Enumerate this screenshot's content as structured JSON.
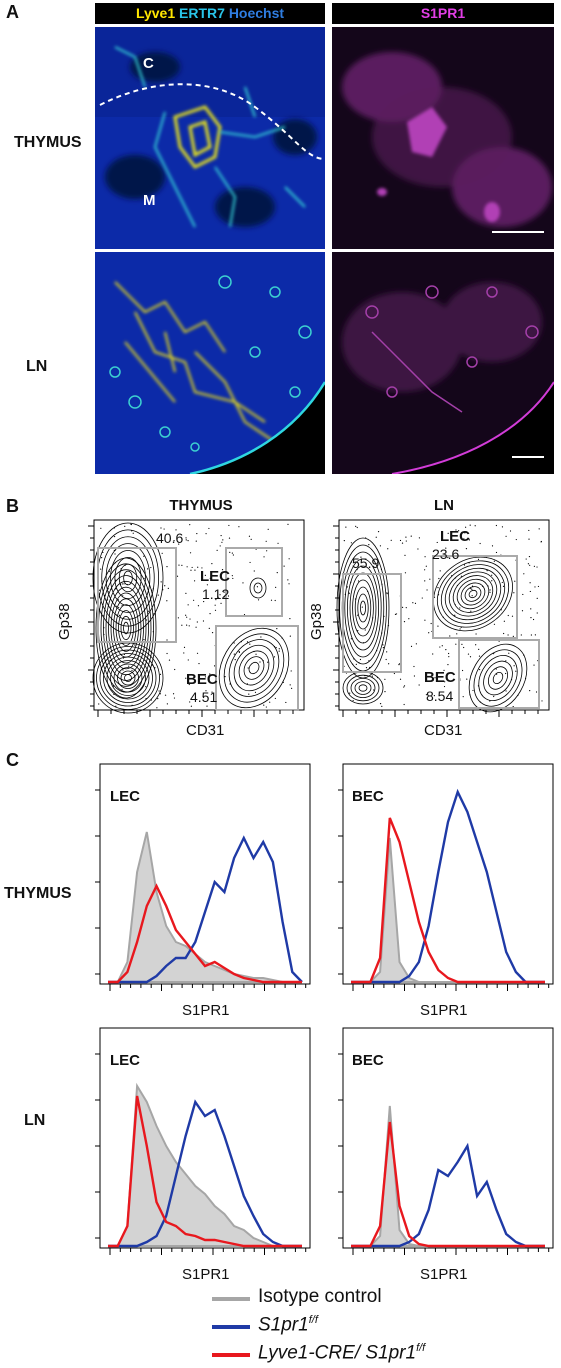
{
  "panelA": {
    "letter": "A",
    "header_left": {
      "parts": [
        {
          "text": "Lyve1",
          "color": "#ffe600"
        },
        {
          "text": "ERTR7",
          "color": "#29c4e8"
        },
        {
          "text": "Hoechst",
          "color": "#2f7de0"
        }
      ]
    },
    "header_right": {
      "text": "S1PR1",
      "color": "#e23ee6"
    },
    "rows": [
      "THYMUS",
      "LN"
    ],
    "thymus_labels": {
      "cortex": "C",
      "medulla": "M"
    }
  },
  "panelB": {
    "letter": "B",
    "thymus": {
      "title": "THYMUS",
      "xlabel": "CD31",
      "ylabel": "Gp38",
      "gates": [
        {
          "name": "",
          "value": "40.6"
        },
        {
          "name": "LEC",
          "value": "1.12"
        },
        {
          "name": "BEC",
          "value": "4.51"
        }
      ]
    },
    "ln": {
      "title": "LN",
      "xlabel": "CD31",
      "ylabel": "Gp38",
      "gates": [
        {
          "name": "",
          "value": "55.9"
        },
        {
          "name": "LEC",
          "value": "23.6"
        },
        {
          "name": "BEC",
          "value": "8.54"
        }
      ]
    }
  },
  "panelC": {
    "letter": "C",
    "rows": [
      "THYMUS",
      "LN"
    ],
    "xlabel": "S1PR1",
    "plots": [
      {
        "row": "THYMUS",
        "cell": "LEC"
      },
      {
        "row": "THYMUS",
        "cell": "BEC"
      },
      {
        "row": "LN",
        "cell": "LEC"
      },
      {
        "row": "LN",
        "cell": "BEC"
      }
    ],
    "legend": [
      {
        "label": "Isotype control",
        "color": "#a6a6a6"
      },
      {
        "label": "S1pr1",
        "sup": "f/f",
        "color": "#1f3aa6"
      },
      {
        "label": "Lyve1-CRE/ S1pr1",
        "sup": "f/f",
        "color": "#e8181e"
      }
    ]
  },
  "chart_data": [
    {
      "type": "scatter",
      "title": "THYMUS",
      "xlabel": "CD31",
      "ylabel": "Gp38",
      "categories": [
        "gate top-left",
        "LEC",
        "BEC"
      ],
      "values": [
        40.6,
        1.12,
        4.51
      ]
    },
    {
      "type": "scatter",
      "title": "LN",
      "xlabel": "CD31",
      "ylabel": "Gp38",
      "categories": [
        "gate top-left",
        "LEC",
        "BEC"
      ],
      "values": [
        55.9,
        23.6,
        8.54
      ]
    },
    {
      "type": "area",
      "title": "THYMUS LEC",
      "xlabel": "S1PR1",
      "x": [
        0,
        1,
        2,
        3,
        4,
        5,
        6,
        7,
        8,
        9,
        10,
        11,
        12,
        13,
        14,
        15,
        16,
        17,
        18,
        19,
        20
      ],
      "series": [
        {
          "name": "Isotype control",
          "values": [
            0,
            0,
            0.1,
            0.55,
            0.75,
            0.45,
            0.28,
            0.2,
            0.18,
            0.14,
            0.1,
            0.08,
            0.06,
            0.04,
            0.03,
            0.02,
            0.02,
            0.01,
            0,
            0,
            0
          ]
        },
        {
          "name": "S1pr1 f/f",
          "values": [
            0,
            0,
            0,
            0,
            0,
            0.03,
            0.08,
            0.12,
            0.12,
            0.2,
            0.35,
            0.5,
            0.45,
            0.62,
            0.72,
            0.62,
            0.7,
            0.6,
            0.3,
            0.05,
            0
          ]
        },
        {
          "name": "Lyve1-CRE/ S1pr1 f/f",
          "values": [
            0,
            0,
            0.05,
            0.2,
            0.38,
            0.48,
            0.38,
            0.26,
            0.2,
            0.14,
            0.08,
            0.1,
            0.07,
            0.04,
            0.02,
            0.01,
            0,
            0,
            0,
            0,
            0
          ]
        }
      ]
    },
    {
      "type": "area",
      "title": "THYMUS BEC",
      "xlabel": "S1PR1",
      "x": [
        0,
        1,
        2,
        3,
        4,
        5,
        6,
        7,
        8,
        9,
        10,
        11,
        12,
        13,
        14,
        15,
        16,
        17,
        18,
        19,
        20
      ],
      "series": [
        {
          "name": "Isotype control",
          "values": [
            0,
            0,
            0,
            0.05,
            0.72,
            0.1,
            0.02,
            0,
            0,
            0,
            0,
            0,
            0,
            0,
            0,
            0,
            0,
            0,
            0,
            0,
            0
          ]
        },
        {
          "name": "S1pr1 f/f",
          "values": [
            0,
            0,
            0,
            0,
            0,
            0,
            0.03,
            0.1,
            0.28,
            0.55,
            0.8,
            0.95,
            0.85,
            0.7,
            0.55,
            0.35,
            0.15,
            0.05,
            0,
            0,
            0
          ]
        },
        {
          "name": "Lyve1-CRE/ S1pr1 f/f",
          "values": [
            0,
            0,
            0,
            0.12,
            0.82,
            0.7,
            0.5,
            0.3,
            0.15,
            0.06,
            0.02,
            0,
            0,
            0,
            0,
            0,
            0,
            0,
            0,
            0,
            0
          ]
        }
      ]
    },
    {
      "type": "area",
      "title": "LN LEC",
      "xlabel": "S1PR1",
      "x": [
        0,
        1,
        2,
        3,
        4,
        5,
        6,
        7,
        8,
        9,
        10,
        11,
        12,
        13,
        14,
        15,
        16,
        17,
        18,
        19,
        20
      ],
      "series": [
        {
          "name": "Isotype control",
          "values": [
            0,
            0,
            0.1,
            0.8,
            0.72,
            0.6,
            0.5,
            0.42,
            0.36,
            0.3,
            0.26,
            0.2,
            0.16,
            0.1,
            0.08,
            0.04,
            0.02,
            0,
            0,
            0,
            0
          ]
        },
        {
          "name": "S1pr1 f/f",
          "values": [
            0,
            0,
            0,
            0,
            0.02,
            0.05,
            0.15,
            0.35,
            0.55,
            0.72,
            0.65,
            0.68,
            0.55,
            0.4,
            0.25,
            0.15,
            0.06,
            0.02,
            0,
            0,
            0
          ]
        },
        {
          "name": "Lyve1-CRE/ S1pr1 f/f",
          "values": [
            0,
            0,
            0.1,
            0.75,
            0.5,
            0.22,
            0.12,
            0.1,
            0.06,
            0.05,
            0.03,
            0.03,
            0.02,
            0.01,
            0,
            0,
            0,
            0,
            0,
            0,
            0
          ]
        }
      ]
    },
    {
      "type": "area",
      "title": "LN BEC",
      "xlabel": "S1PR1",
      "x": [
        0,
        1,
        2,
        3,
        4,
        5,
        6,
        7,
        8,
        9,
        10,
        11,
        12,
        13,
        14,
        15,
        16,
        17,
        18,
        19,
        20
      ],
      "series": [
        {
          "name": "Isotype control",
          "values": [
            0,
            0,
            0,
            0.05,
            0.7,
            0.08,
            0.01,
            0,
            0,
            0,
            0,
            0,
            0,
            0,
            0,
            0,
            0,
            0,
            0,
            0,
            0
          ]
        },
        {
          "name": "S1pr1 f/f",
          "values": [
            0,
            0,
            0,
            0,
            0,
            0,
            0.02,
            0.06,
            0.18,
            0.38,
            0.35,
            0.42,
            0.5,
            0.25,
            0.32,
            0.18,
            0.06,
            0.02,
            0,
            0,
            0
          ]
        },
        {
          "name": "Lyve1-CRE/ S1pr1 f/f",
          "values": [
            0,
            0,
            0,
            0.1,
            0.62,
            0.2,
            0.05,
            0.01,
            0,
            0,
            0,
            0,
            0,
            0,
            0,
            0,
            0,
            0,
            0,
            0,
            0
          ]
        }
      ]
    }
  ]
}
